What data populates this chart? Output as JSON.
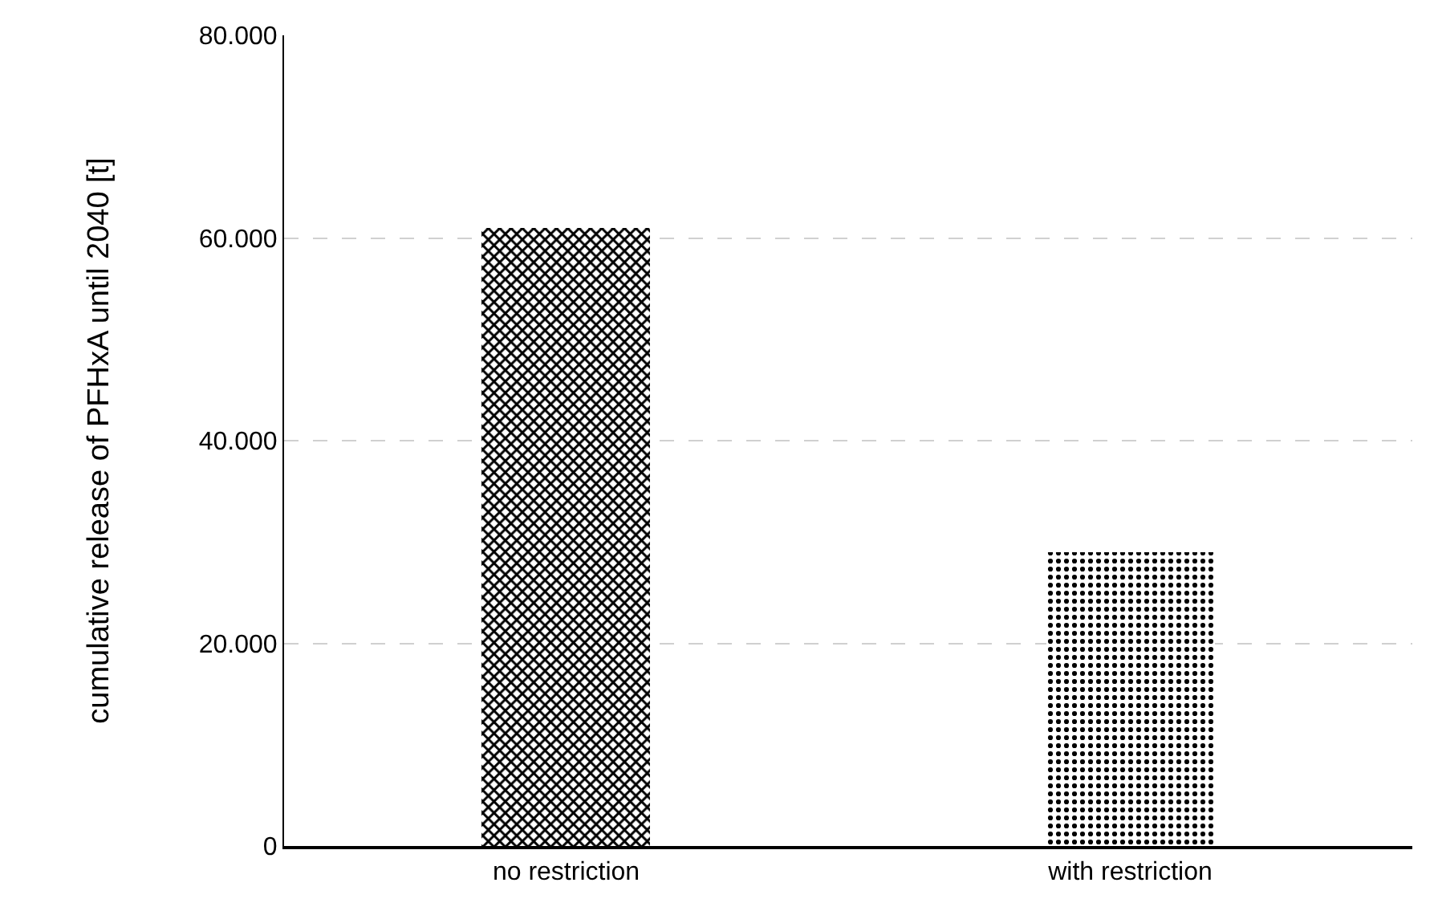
{
  "chart_data": {
    "type": "bar",
    "ylabel": "cumulative release of PFHxA until 2040 [t]",
    "categories": [
      "no restriction",
      "with restriction"
    ],
    "values": [
      61000,
      29000
    ],
    "colors": [
      "#000000",
      "#000000"
    ],
    "ylim": [
      0,
      80000
    ],
    "yticks": [
      0,
      {
        "value": 20000,
        "label": "20.000"
      },
      {
        "value": 40000,
        "label": "40.000"
      },
      {
        "value": 60000,
        "label": "60.000"
      },
      {
        "value": 80000,
        "label": "80.000"
      }
    ],
    "grid": "y"
  }
}
